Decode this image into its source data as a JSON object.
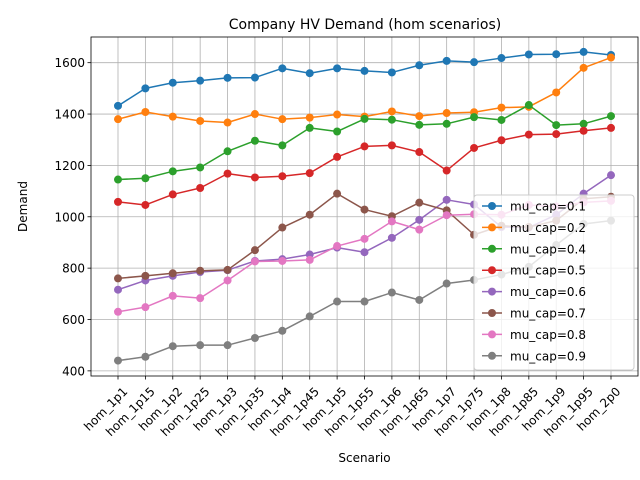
{
  "chart_data": {
    "type": "line",
    "title": "Company HV Demand (hom scenarios)",
    "xlabel": "Scenario",
    "ylabel": "Demand",
    "ylim": [
      380,
      1700
    ],
    "yticks": [
      400,
      600,
      800,
      1000,
      1200,
      1400,
      1600
    ],
    "grid": true,
    "legend_position": "right",
    "categories": [
      "hom_1p1",
      "hom_1p15",
      "hom_1p2",
      "hom_1p25",
      "hom_1p3",
      "hom_1p35",
      "hom_1p4",
      "hom_1p45",
      "hom_1p5",
      "hom_1p55",
      "hom_1p6",
      "hom_1p65",
      "hom_1p7",
      "hom_1p75",
      "hom_1p8",
      "hom_1p85",
      "hom_1p9",
      "hom_1p95",
      "hom_2p0"
    ],
    "series": [
      {
        "name": "mu_cap=0.1",
        "color": "#1f77b4",
        "values": [
          1432,
          1500,
          1522,
          1530,
          1541,
          1542,
          1578,
          1559,
          1578,
          1568,
          1562,
          1590,
          1607,
          1602,
          1618,
          1632,
          1633,
          1642,
          1630
        ]
      },
      {
        "name": "mu_cap=0.2",
        "color": "#ff7f0e",
        "values": [
          1380,
          1408,
          1390,
          1373,
          1367,
          1400,
          1380,
          1386,
          1398,
          1390,
          1410,
          1392,
          1404,
          1407,
          1425,
          1428,
          1484,
          1580,
          1620
        ]
      },
      {
        "name": "mu_cap=0.4",
        "color": "#2ca02c",
        "values": [
          1145,
          1150,
          1177,
          1192,
          1255,
          1296,
          1278,
          1346,
          1332,
          1381,
          1378,
          1358,
          1362,
          1388,
          1377,
          1435,
          1357,
          1362,
          1392
        ]
      },
      {
        "name": "mu_cap=0.5",
        "color": "#d62728",
        "values": [
          1058,
          1046,
          1087,
          1112,
          1168,
          1153,
          1158,
          1170,
          1233,
          1274,
          1278,
          1252,
          1180,
          1268,
          1298,
          1320,
          1322,
          1335,
          1346
        ]
      },
      {
        "name": "mu_cap=0.6",
        "color": "#9467bd",
        "values": [
          716,
          752,
          770,
          785,
          792,
          828,
          835,
          853,
          880,
          862,
          918,
          988,
          1066,
          1048,
          960,
          958,
          1008,
          1090,
          1162
        ]
      },
      {
        "name": "mu_cap=0.7",
        "color": "#8c564b",
        "values": [
          760,
          770,
          780,
          790,
          793,
          870,
          958,
          1008,
          1090,
          1028,
          1002,
          1055,
          1025,
          930,
          965,
          960,
          985,
          1070,
          1078
        ]
      },
      {
        "name": "mu_cap=0.8",
        "color": "#e377c2",
        "values": [
          630,
          648,
          692,
          683,
          752,
          826,
          828,
          832,
          886,
          914,
          982,
          950,
          1006,
          1010,
          1008,
          1046,
          1040,
          1056,
          1062
        ]
      },
      {
        "name": "mu_cap=0.9",
        "color": "#7f7f7f",
        "values": [
          440,
          455,
          496,
          500,
          500,
          528,
          556,
          612,
          670,
          670,
          705,
          676,
          740,
          754,
          775,
          805,
          890,
          972,
          985
        ]
      }
    ]
  }
}
